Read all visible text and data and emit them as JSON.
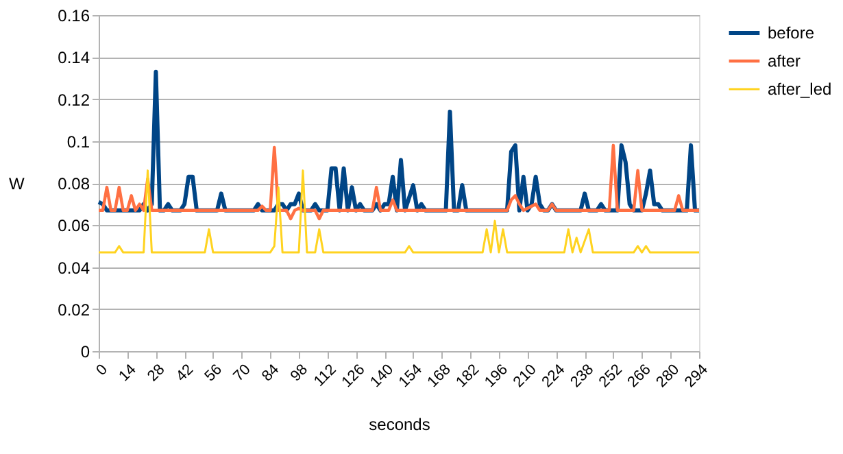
{
  "chart_data": {
    "type": "line",
    "xlabel": "seconds",
    "ylabel": "W",
    "xlim": [
      0,
      294
    ],
    "xticks": [
      0,
      14,
      28,
      42,
      56,
      70,
      84,
      98,
      112,
      126,
      140,
      154,
      168,
      182,
      196,
      210,
      224,
      238,
      252,
      266,
      280,
      294
    ],
    "ylim": [
      0,
      0.16
    ],
    "yticks": [
      0,
      0.02,
      0.04,
      0.06,
      0.08,
      0.1,
      0.12,
      0.14,
      0.16
    ],
    "grid": "y",
    "legend": "right",
    "marker": "none",
    "line_style": "solid",
    "series": [
      {
        "name": "before",
        "color": "#004586",
        "x": [
          0,
          2,
          4,
          20,
          22,
          24,
          26,
          28,
          30,
          32,
          34,
          36,
          40,
          42,
          44,
          46,
          48,
          58,
          60,
          62,
          76,
          78,
          80,
          86,
          88,
          90,
          92,
          94,
          96,
          98,
          100,
          104,
          106,
          108,
          112,
          114,
          116,
          118,
          120,
          122,
          124,
          126,
          128,
          130,
          134,
          136,
          138,
          140,
          142,
          144,
          146,
          148,
          150,
          154,
          156,
          158,
          160,
          170,
          172,
          174,
          176,
          178,
          180,
          200,
          202,
          204,
          206,
          208,
          210,
          212,
          214,
          216,
          218,
          220,
          222,
          224,
          236,
          238,
          240,
          244,
          246,
          248,
          254,
          256,
          258,
          260,
          262,
          266,
          268,
          270,
          272,
          274,
          276,
          288,
          290,
          292,
          294
        ],
        "values": [
          0.071,
          0.07,
          0.067,
          0.067,
          0.07,
          0.067,
          0.07,
          0.133,
          0.067,
          0.067,
          0.07,
          0.067,
          0.067,
          0.07,
          0.083,
          0.083,
          0.067,
          0.067,
          0.075,
          0.067,
          0.067,
          0.07,
          0.067,
          0.067,
          0.07,
          0.07,
          0.067,
          0.07,
          0.07,
          0.075,
          0.067,
          0.067,
          0.07,
          0.067,
          0.067,
          0.087,
          0.087,
          0.067,
          0.087,
          0.067,
          0.078,
          0.067,
          0.07,
          0.067,
          0.067,
          0.07,
          0.067,
          0.07,
          0.07,
          0.083,
          0.067,
          0.091,
          0.067,
          0.079,
          0.067,
          0.07,
          0.067,
          0.067,
          0.114,
          0.067,
          0.067,
          0.079,
          0.067,
          0.067,
          0.095,
          0.098,
          0.067,
          0.083,
          0.067,
          0.07,
          0.083,
          0.07,
          0.067,
          0.067,
          0.07,
          0.067,
          0.067,
          0.075,
          0.067,
          0.067,
          0.07,
          0.067,
          0.067,
          0.098,
          0.09,
          0.07,
          0.067,
          0.067,
          0.075,
          0.086,
          0.07,
          0.07,
          0.067,
          0.067,
          0.098,
          0.067,
          0.067
        ]
      },
      {
        "name": "after",
        "color": "#ff7043",
        "x": [
          0,
          2,
          4,
          6,
          8,
          10,
          12,
          14,
          16,
          18,
          20,
          22,
          24,
          26,
          78,
          80,
          82,
          84,
          86,
          88,
          92,
          94,
          96,
          98,
          100,
          106,
          108,
          110,
          134,
          136,
          138,
          142,
          144,
          146,
          200,
          202,
          204,
          206,
          208,
          214,
          216,
          220,
          222,
          224,
          250,
          252,
          254,
          262,
          264,
          266,
          282,
          284,
          286,
          294
        ],
        "values": [
          0.067,
          0.067,
          0.078,
          0.067,
          0.067,
          0.078,
          0.067,
          0.067,
          0.074,
          0.067,
          0.07,
          0.067,
          0.082,
          0.067,
          0.067,
          0.069,
          0.067,
          0.067,
          0.097,
          0.067,
          0.067,
          0.063,
          0.067,
          0.068,
          0.067,
          0.067,
          0.063,
          0.067,
          0.067,
          0.078,
          0.067,
          0.067,
          0.072,
          0.067,
          0.067,
          0.072,
          0.074,
          0.07,
          0.067,
          0.07,
          0.067,
          0.067,
          0.07,
          0.067,
          0.067,
          0.098,
          0.067,
          0.067,
          0.086,
          0.067,
          0.067,
          0.074,
          0.067,
          0.067
        ]
      },
      {
        "name": "after_led",
        "color": "#ffd320",
        "x": [
          0,
          8,
          10,
          12,
          22,
          24,
          26,
          52,
          54,
          56,
          84,
          86,
          88,
          90,
          98,
          100,
          102,
          106,
          108,
          110,
          150,
          152,
          154,
          188,
          190,
          192,
          194,
          196,
          198,
          200,
          228,
          230,
          232,
          234,
          236,
          240,
          242,
          262,
          264,
          266,
          268,
          270,
          294
        ],
        "values": [
          0.047,
          0.047,
          0.05,
          0.047,
          0.047,
          0.086,
          0.047,
          0.047,
          0.058,
          0.047,
          0.047,
          0.05,
          0.078,
          0.047,
          0.047,
          0.086,
          0.047,
          0.047,
          0.058,
          0.047,
          0.047,
          0.05,
          0.047,
          0.047,
          0.058,
          0.047,
          0.062,
          0.047,
          0.058,
          0.047,
          0.047,
          0.058,
          0.047,
          0.054,
          0.047,
          0.058,
          0.047,
          0.047,
          0.05,
          0.047,
          0.05,
          0.047,
          0.047
        ]
      }
    ]
  }
}
